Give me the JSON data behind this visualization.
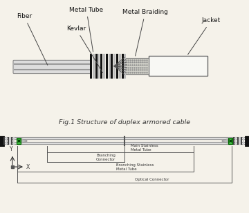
{
  "bg_color": "#f5f2ea",
  "title_fig1": "Fig.1 Structure of duplex armored cable",
  "labels_top": [
    "Fiber",
    "Metal Tube",
    "Kevlar",
    "Metal Braiding",
    "Jacket"
  ],
  "labels_diagram": [
    "Main Stainless\nMetal Tube",
    "Branching\nConnector",
    "Branching Stainless\nMetal Tube",
    "Optical Connector"
  ],
  "green_fill": "#44bb44",
  "green_edge": "#006600",
  "dark": "#222222",
  "gray1": "#aaaaaa",
  "gray2": "#cccccc",
  "gray3": "#888888",
  "line_col": "#666666"
}
